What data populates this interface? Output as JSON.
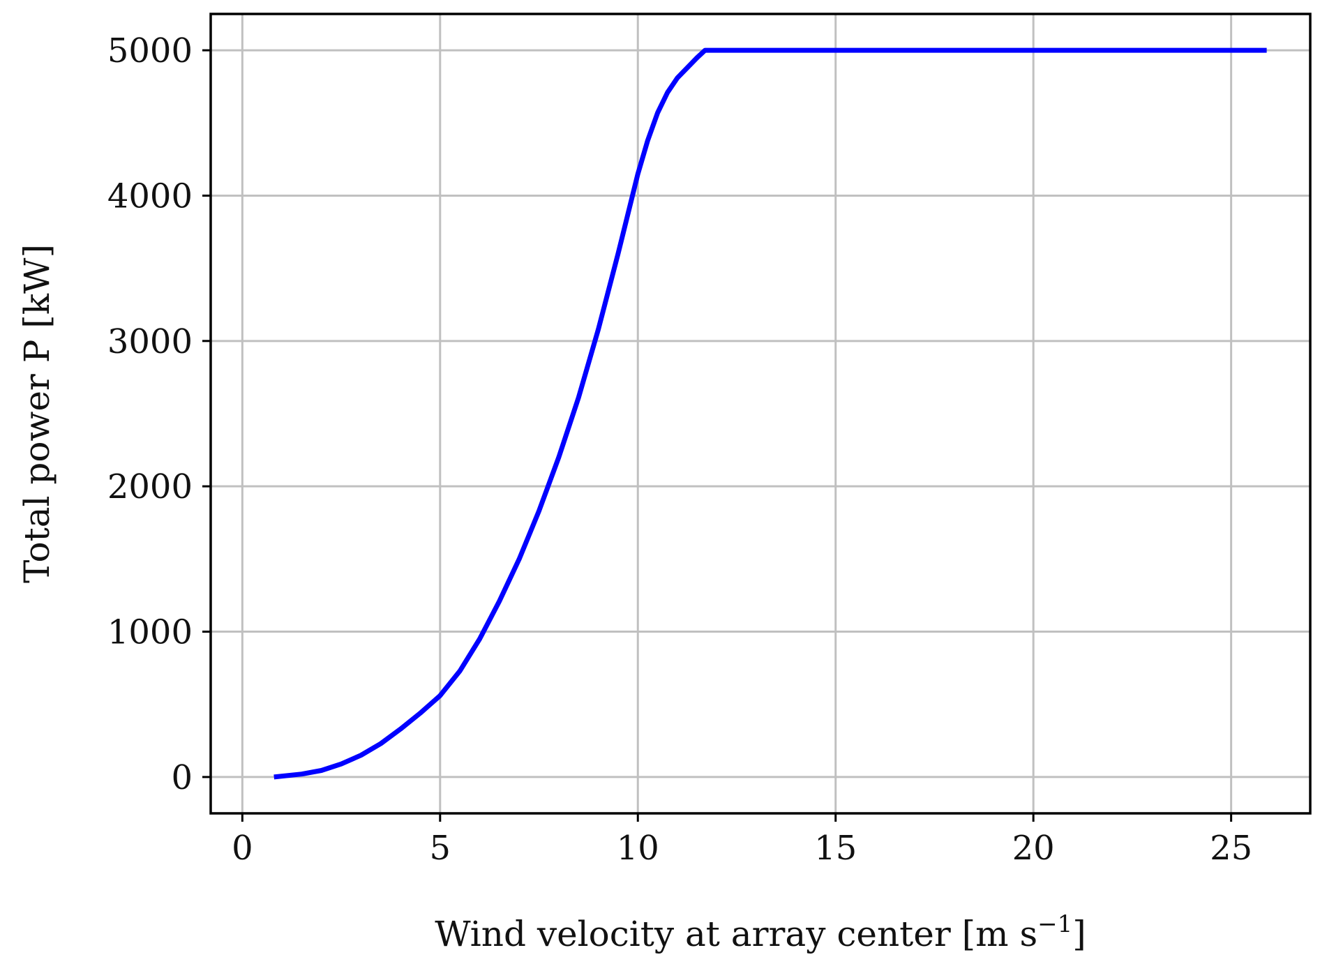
{
  "chart_data": {
    "type": "line",
    "xlabel": "Wind velocity at array center [m s",
    "xlabel_sup": "−1",
    "xlabel_close": "]",
    "ylabel": "Total power P [kW]",
    "xlim": [
      -0.8,
      27.0
    ],
    "ylim": [
      -250,
      5250
    ],
    "xticks": [
      0,
      5,
      10,
      15,
      20,
      25
    ],
    "yticks": [
      0,
      1000,
      2000,
      3000,
      4000,
      5000
    ],
    "grid": true,
    "colors": {
      "line": "#0000ff",
      "grid": "#c0c0c0",
      "axes": "#000000"
    },
    "series": [
      {
        "x": [
          0.8,
          1.5,
          2.0,
          2.5,
          3.0,
          3.5,
          4.0,
          4.5,
          5.0,
          5.5,
          6.0,
          6.5,
          7.0,
          7.5,
          8.0,
          8.5,
          9.0,
          9.5,
          10.0,
          10.25,
          10.5,
          10.75,
          11.0,
          11.5,
          11.7,
          12.0,
          15.0,
          20.0,
          25.0,
          25.9
        ],
        "y": [
          0,
          20,
          45,
          90,
          150,
          230,
          330,
          440,
          560,
          730,
          950,
          1210,
          1500,
          1830,
          2200,
          2610,
          3080,
          3600,
          4150,
          4380,
          4570,
          4710,
          4810,
          4950,
          5000,
          5000,
          5000,
          5000,
          5000,
          5000
        ]
      }
    ]
  }
}
